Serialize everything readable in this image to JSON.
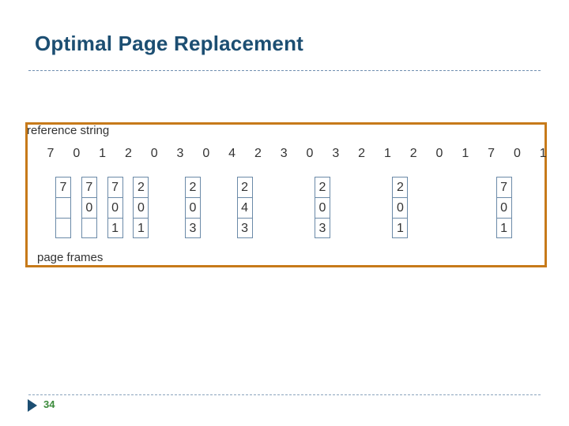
{
  "slide": {
    "title": "Optimal Page Replacement",
    "page_number": "34"
  },
  "figure": {
    "reference_label": "reference string",
    "frames_label": "page frames",
    "reference_string": [
      "7",
      "0",
      "1",
      "2",
      "0",
      "3",
      "0",
      "4",
      "2",
      "3",
      "0",
      "3",
      "2",
      "1",
      "2",
      "0",
      "1",
      "7",
      "0",
      "1"
    ],
    "frame_states": [
      {
        "ref_index": 0,
        "frames": [
          "7",
          "",
          ""
        ]
      },
      {
        "ref_index": 1,
        "frames": [
          "7",
          "0",
          ""
        ]
      },
      {
        "ref_index": 2,
        "frames": [
          "7",
          "0",
          "1"
        ]
      },
      {
        "ref_index": 3,
        "frames": [
          "2",
          "0",
          "1"
        ]
      },
      {
        "ref_index": 5,
        "frames": [
          "2",
          "0",
          "3"
        ]
      },
      {
        "ref_index": 7,
        "frames": [
          "2",
          "4",
          "3"
        ]
      },
      {
        "ref_index": 10,
        "frames": [
          "2",
          "0",
          "3"
        ]
      },
      {
        "ref_index": 13,
        "frames": [
          "2",
          "0",
          "1"
        ]
      },
      {
        "ref_index": 17,
        "frames": [
          "7",
          "0",
          "1"
        ]
      }
    ]
  },
  "colors": {
    "title": "#1c4e72",
    "frame_border": "#c77a1a",
    "page_number": "#3a8a3a"
  }
}
